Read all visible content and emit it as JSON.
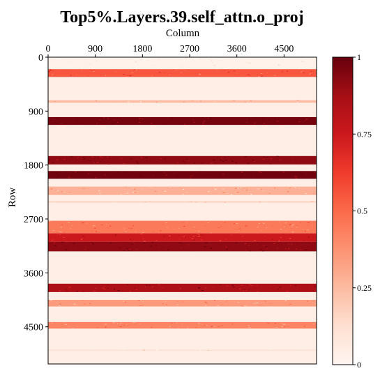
{
  "chart_data": {
    "type": "heatmap",
    "title": "Top5%.Layers.39.self_attn.o_proj",
    "xlabel": "Column",
    "ylabel": "Row",
    "x_axis_position": "top",
    "xlim": [
      0,
      5120
    ],
    "ylim": [
      0,
      5120
    ],
    "x_ticks": [
      0,
      900,
      1800,
      2700,
      3600,
      4500
    ],
    "y_ticks": [
      0,
      900,
      1800,
      2700,
      3600,
      4500
    ],
    "colorbar": {
      "colormap": "Reds",
      "range": [
        0,
        1
      ],
      "ticks": [
        0,
        0.25,
        0.5,
        0.75,
        1
      ],
      "tick_labels": [
        "0",
        "0.25",
        "0.5",
        "0.75",
        "1"
      ],
      "color_low": "#fff5f0",
      "color_high": "#67000d"
    },
    "row_bands": [
      {
        "start": 0,
        "end": 180,
        "value": 0.02
      },
      {
        "start": 200,
        "end": 330,
        "value": 0.55
      },
      {
        "start": 720,
        "end": 760,
        "value": 0.25
      },
      {
        "start": 1000,
        "end": 1130,
        "value": 0.97
      },
      {
        "start": 1650,
        "end": 1790,
        "value": 0.92
      },
      {
        "start": 1900,
        "end": 2030,
        "value": 0.98
      },
      {
        "start": 2160,
        "end": 2300,
        "value": 0.28
      },
      {
        "start": 2400,
        "end": 2430,
        "value": 0.15
      },
      {
        "start": 2730,
        "end": 2940,
        "value": 0.45
      },
      {
        "start": 2940,
        "end": 3080,
        "value": 0.75
      },
      {
        "start": 3080,
        "end": 3240,
        "value": 0.92
      },
      {
        "start": 3780,
        "end": 3920,
        "value": 0.85
      },
      {
        "start": 4050,
        "end": 4160,
        "value": 0.35
      },
      {
        "start": 4420,
        "end": 4530,
        "value": 0.42
      },
      {
        "start": 4880,
        "end": 4900,
        "value": 0.12
      }
    ],
    "background_value": 0.04
  }
}
